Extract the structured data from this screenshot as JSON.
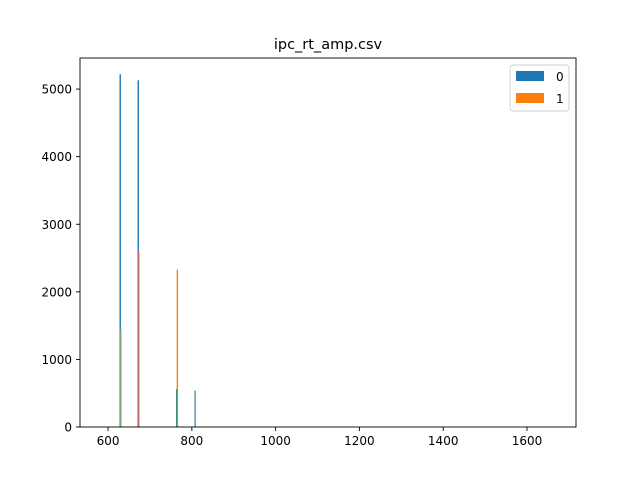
{
  "chart_data": {
    "type": "bar",
    "title": "ipc_rt_amp.csv",
    "xlabel": "",
    "ylabel": "",
    "xlim": [
      533,
      1717
    ],
    "ylim": [
      0,
      5460
    ],
    "x_ticks": [
      600,
      800,
      1000,
      1200,
      1400,
      1600
    ],
    "y_ticks": [
      0,
      1000,
      2000,
      3000,
      4000,
      5000
    ],
    "grid": false,
    "legend": {
      "placement": "top-right",
      "entries": [
        "0",
        "1"
      ]
    },
    "series": [
      {
        "name": "0",
        "color": "#1f77b4",
        "bins": [
          {
            "x": 629,
            "value": 5220
          },
          {
            "x": 672,
            "value": 5130
          },
          {
            "x": 764,
            "value": 560
          },
          {
            "x": 808,
            "value": 540
          }
        ]
      },
      {
        "name": "1",
        "color": "#ff7f0e",
        "bins": [
          {
            "x": 629,
            "value": 1450
          },
          {
            "x": 672,
            "value": 2600
          },
          {
            "x": 764,
            "value": 2330
          }
        ]
      }
    ],
    "overlay_colors": [
      "#17becf",
      "#9467bd",
      "#2ca02c",
      "#bcbd22",
      "#8c564b"
    ]
  }
}
